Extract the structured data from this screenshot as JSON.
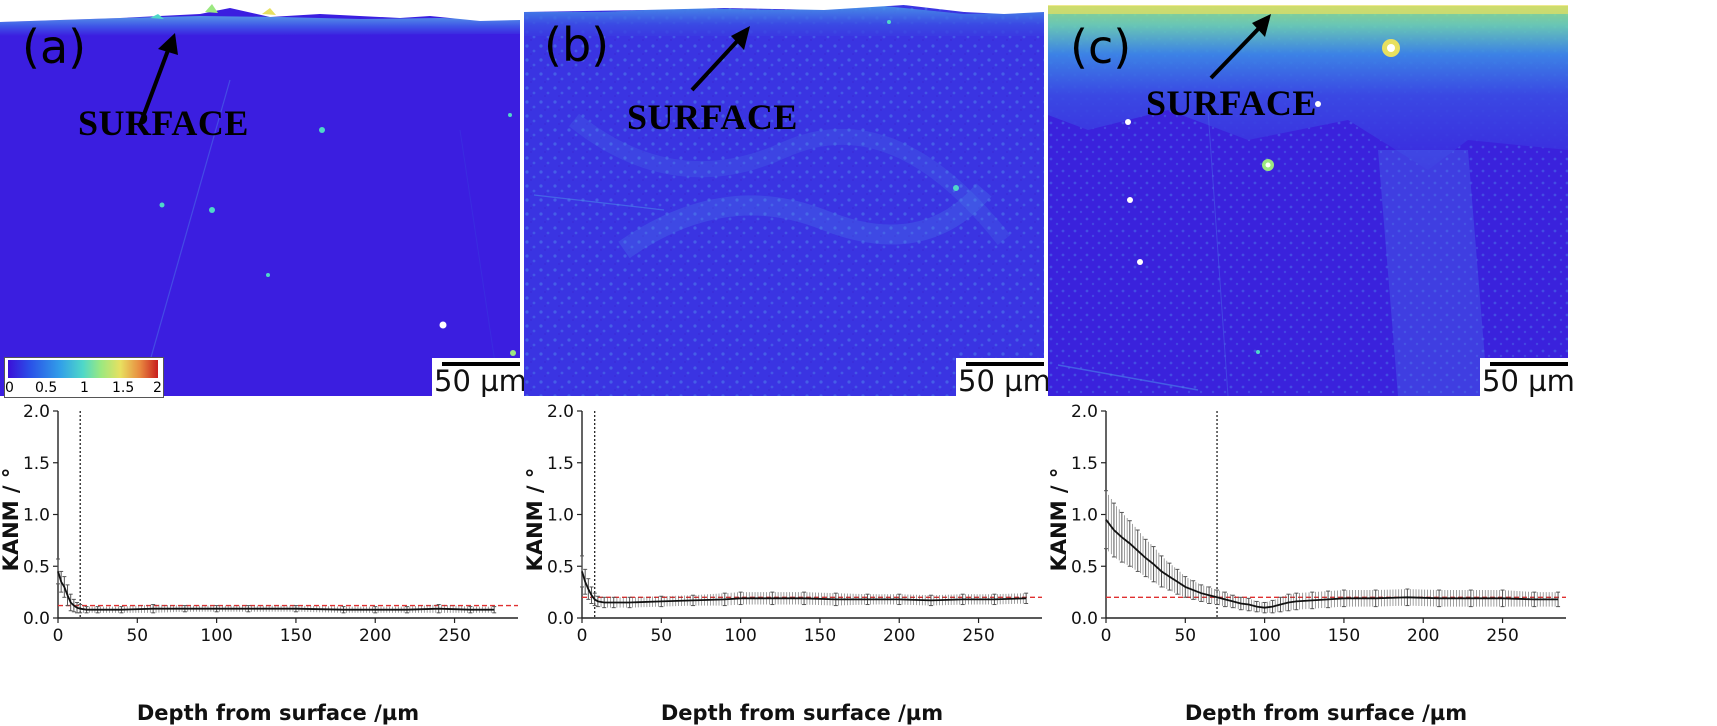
{
  "panels": [
    {
      "letter": "(a)",
      "annotation": "SURFACE",
      "scale": "50 µm"
    },
    {
      "letter": "(b)",
      "annotation": "SURFACE",
      "scale": "50 µm"
    },
    {
      "letter": "(c)",
      "annotation": "SURFACE",
      "scale": "50 µm"
    }
  ],
  "colorbar": {
    "ticks": [
      "0",
      "0.5",
      "1",
      "1.5",
      "2"
    ],
    "colors": [
      "#3b0fd8",
      "#2a52e8",
      "#32a0e8",
      "#4fd8c8",
      "#9be880",
      "#e8e060",
      "#e88a40",
      "#c81e1e"
    ]
  },
  "colors": {
    "map_base": "#3b1ee0",
    "line": "#111111",
    "error_bar": "#555555",
    "reference": "#e03030"
  },
  "chart_data": [
    {
      "type": "line",
      "panel": "(a)",
      "xlabel": "Depth from surface /µm",
      "ylabel": "KANM / °",
      "xlim": [
        0,
        290
      ],
      "ylim": [
        0,
        2.0
      ],
      "xticks": [
        0,
        50,
        100,
        150,
        200,
        250
      ],
      "yticks": [
        "0.0",
        "0.5",
        "1.0",
        "1.5",
        "2.0"
      ],
      "reference_line": 0.12,
      "boundary_depth": 14,
      "series": [
        {
          "x": [
            0,
            2,
            4,
            6,
            8,
            10,
            12,
            14,
            18,
            25,
            40,
            60,
            80,
            100,
            120,
            150,
            180,
            200,
            220,
            240,
            260,
            275
          ],
          "y": [
            0.45,
            0.35,
            0.3,
            0.22,
            0.15,
            0.12,
            0.1,
            0.09,
            0.08,
            0.08,
            0.08,
            0.09,
            0.09,
            0.09,
            0.09,
            0.09,
            0.08,
            0.08,
            0.08,
            0.09,
            0.08,
            0.08
          ],
          "err": [
            0.12,
            0.1,
            0.1,
            0.1,
            0.08,
            0.06,
            0.05,
            0.04,
            0.03,
            0.03,
            0.03,
            0.04,
            0.03,
            0.03,
            0.03,
            0.03,
            0.03,
            0.03,
            0.03,
            0.04,
            0.03,
            0.03
          ]
        }
      ]
    },
    {
      "type": "line",
      "panel": "(b)",
      "xlabel": "Depth from surface /µm",
      "ylabel": "KANM / °",
      "xlim": [
        0,
        290
      ],
      "ylim": [
        0,
        2.0
      ],
      "xticks": [
        0,
        50,
        100,
        150,
        200,
        250
      ],
      "yticks": [
        "0.0",
        "0.5",
        "1.0",
        "1.5",
        "2.0"
      ],
      "reference_line": 0.2,
      "boundary_depth": 8,
      "series": [
        {
          "x": [
            0,
            2,
            4,
            6,
            8,
            10,
            14,
            20,
            30,
            50,
            70,
            90,
            100,
            120,
            140,
            160,
            180,
            200,
            220,
            240,
            260,
            280
          ],
          "y": [
            0.45,
            0.35,
            0.28,
            0.22,
            0.18,
            0.16,
            0.15,
            0.15,
            0.15,
            0.16,
            0.17,
            0.18,
            0.19,
            0.19,
            0.19,
            0.18,
            0.18,
            0.18,
            0.17,
            0.18,
            0.18,
            0.19
          ],
          "err": [
            0.15,
            0.12,
            0.1,
            0.08,
            0.06,
            0.05,
            0.05,
            0.05,
            0.05,
            0.05,
            0.05,
            0.06,
            0.06,
            0.06,
            0.06,
            0.06,
            0.05,
            0.05,
            0.05,
            0.05,
            0.05,
            0.05
          ]
        }
      ]
    },
    {
      "type": "line",
      "panel": "(c)",
      "xlabel": "Depth from surface /µm",
      "ylabel": "KANM / °",
      "xlim": [
        0,
        290
      ],
      "ylim": [
        0,
        2.0
      ],
      "xticks": [
        0,
        50,
        100,
        150,
        200,
        250
      ],
      "yticks": [
        "0.0",
        "0.5",
        "1.0",
        "1.5",
        "2.0"
      ],
      "reference_line": 0.2,
      "boundary_depth": 70,
      "series": [
        {
          "x": [
            0,
            5,
            10,
            15,
            20,
            25,
            30,
            35,
            40,
            45,
            50,
            55,
            60,
            65,
            70,
            75,
            80,
            85,
            90,
            95,
            100,
            105,
            110,
            115,
            120,
            130,
            140,
            150,
            170,
            190,
            210,
            230,
            250,
            270,
            285
          ],
          "y": [
            0.95,
            0.85,
            0.78,
            0.72,
            0.65,
            0.58,
            0.52,
            0.45,
            0.4,
            0.35,
            0.3,
            0.27,
            0.24,
            0.22,
            0.2,
            0.18,
            0.16,
            0.14,
            0.13,
            0.11,
            0.1,
            0.11,
            0.13,
            0.15,
            0.16,
            0.17,
            0.18,
            0.19,
            0.19,
            0.2,
            0.19,
            0.19,
            0.19,
            0.18,
            0.18
          ],
          "err": [
            0.28,
            0.26,
            0.24,
            0.22,
            0.2,
            0.18,
            0.17,
            0.15,
            0.13,
            0.12,
            0.1,
            0.09,
            0.08,
            0.08,
            0.07,
            0.07,
            0.06,
            0.06,
            0.06,
            0.05,
            0.05,
            0.06,
            0.07,
            0.08,
            0.08,
            0.08,
            0.08,
            0.08,
            0.08,
            0.08,
            0.08,
            0.08,
            0.08,
            0.07,
            0.07
          ]
        }
      ]
    }
  ]
}
